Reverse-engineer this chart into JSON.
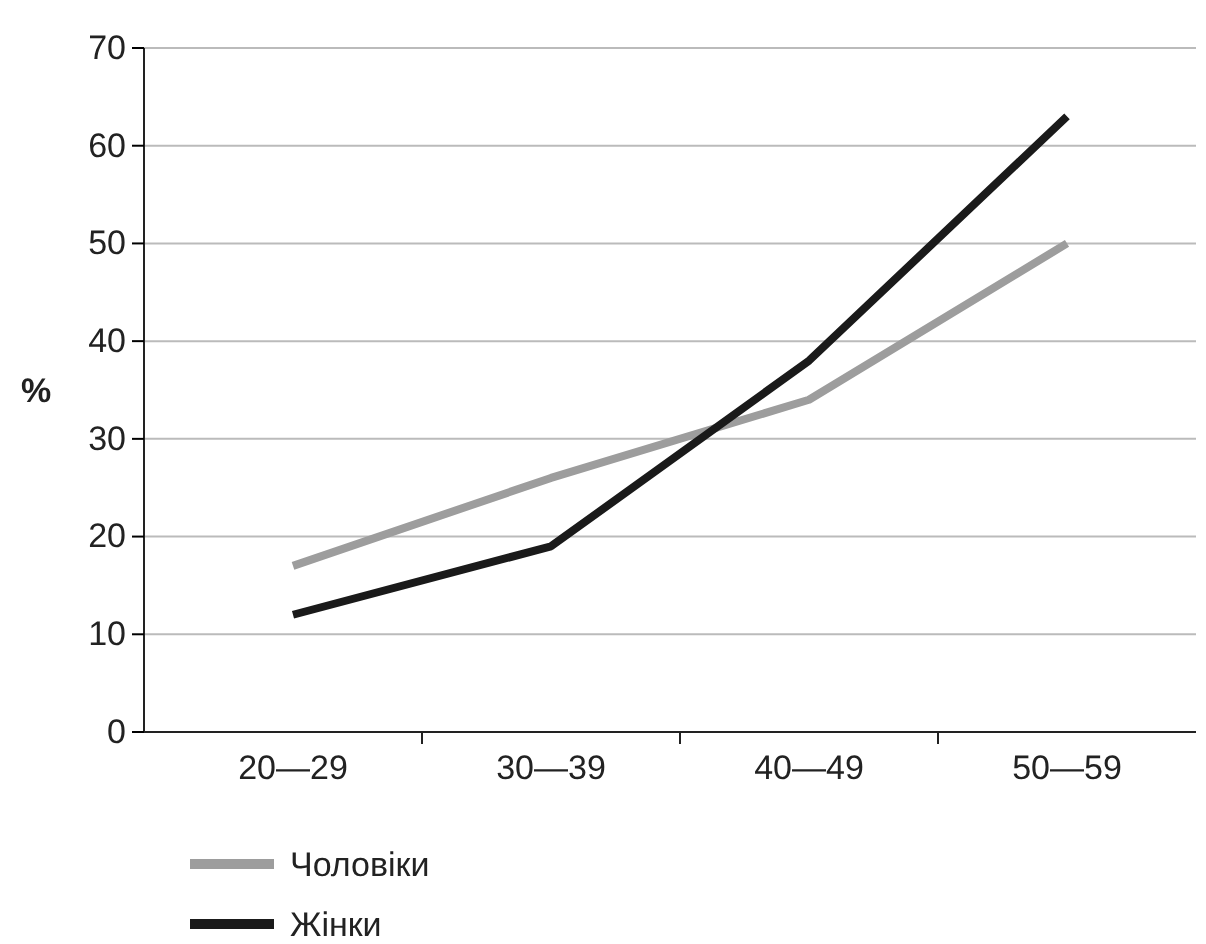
{
  "chart_data": {
    "type": "line",
    "ylabel": "%",
    "categories": [
      "20—29",
      "30—39",
      "40—49",
      "50—59"
    ],
    "series": [
      {
        "name": "Чоловіки",
        "color": "#9d9d9d",
        "values": [
          17,
          26,
          34,
          50
        ]
      },
      {
        "name": "Жінки",
        "color": "#1a1a1a",
        "values": [
          12,
          19,
          38,
          63
        ]
      }
    ],
    "ylim": [
      0,
      70
    ],
    "yticks": [
      0,
      10,
      20,
      30,
      40,
      50,
      60,
      70
    ],
    "grid": "y",
    "legend": "bottom left",
    "marker": "none",
    "line_style": "solid"
  }
}
